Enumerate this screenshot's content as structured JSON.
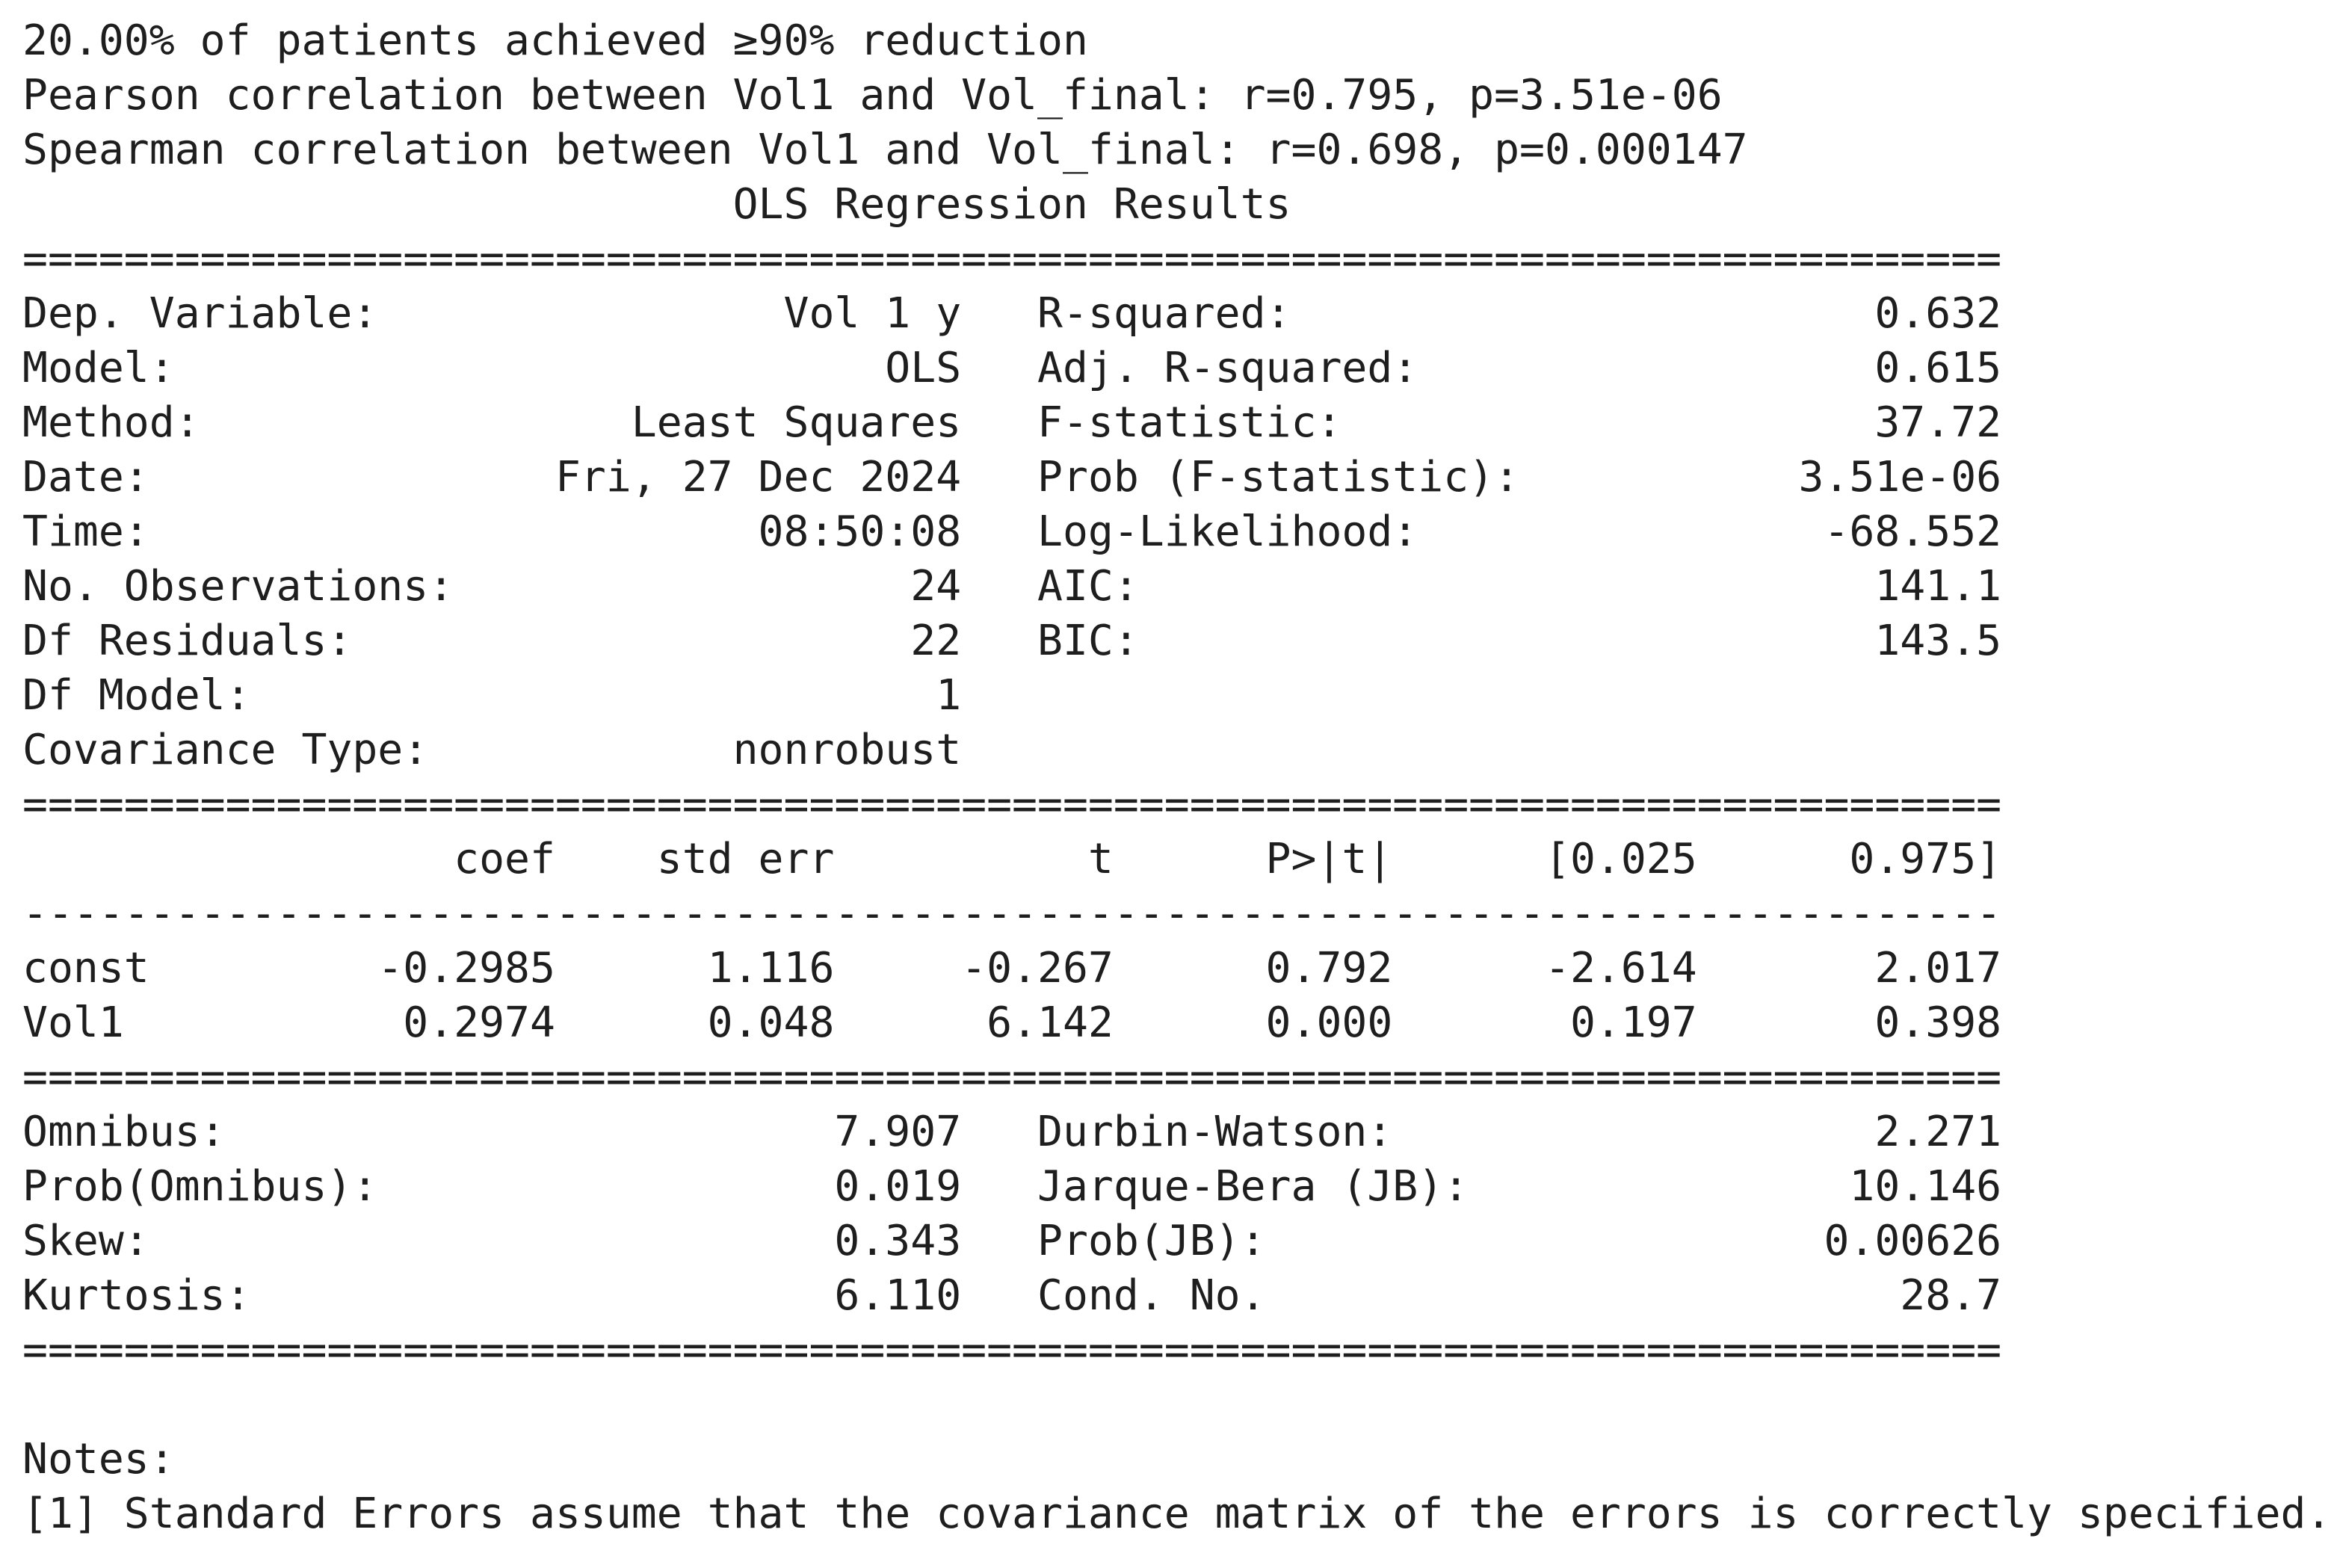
{
  "summary_lines": [
    "20.00% of patients achieved ≥90% reduction",
    "Pearson correlation between Vol1 and Vol_final: r=0.795, p=3.51e-06",
    "Spearman correlation between Vol1 and Vol_final: r=0.698, p=0.000147"
  ],
  "regression_title": "                            OLS Regression Results",
  "rule_double": "==============================================================================",
  "rule_single": "------------------------------------------------------------------------------",
  "model_info_rows": [
    "Dep. Variable:                Vol 1 y   R-squared:                       0.632",
    "Model:                            OLS   Adj. R-squared:                  0.615",
    "Method:                 Least Squares   F-statistic:                     37.72",
    "Date:                Fri, 27 Dec 2024   Prob (F-statistic):           3.51e-06",
    "Time:                        08:50:08   Log-Likelihood:                -68.552",
    "No. Observations:                  24   AIC:                             141.1",
    "Df Residuals:                      22   BIC:                             143.5",
    "Df Model:                           1",
    "Covariance Type:            nonrobust"
  ],
  "coef_header": "                 coef    std err          t      P>|t|      [0.025      0.975]",
  "coef_rows": [
    "const         -0.2985      1.116     -0.267      0.792      -2.614       2.017",
    "Vol1           0.2974      0.048      6.142      0.000       0.197       0.398"
  ],
  "diagnostics_rows": [
    "Omnibus:                        7.907   Durbin-Watson:                   2.271",
    "Prob(Omnibus):                  0.019   Jarque-Bera (JB):               10.146",
    "Skew:                           0.343   Prob(JB):                      0.00626",
    "Kurtosis:                       6.110   Cond. No.                         28.7"
  ],
  "notes": {
    "heading": "Notes:",
    "items": [
      "[1] Standard Errors assume that the covariance matrix of the errors is correctly specified."
    ]
  }
}
